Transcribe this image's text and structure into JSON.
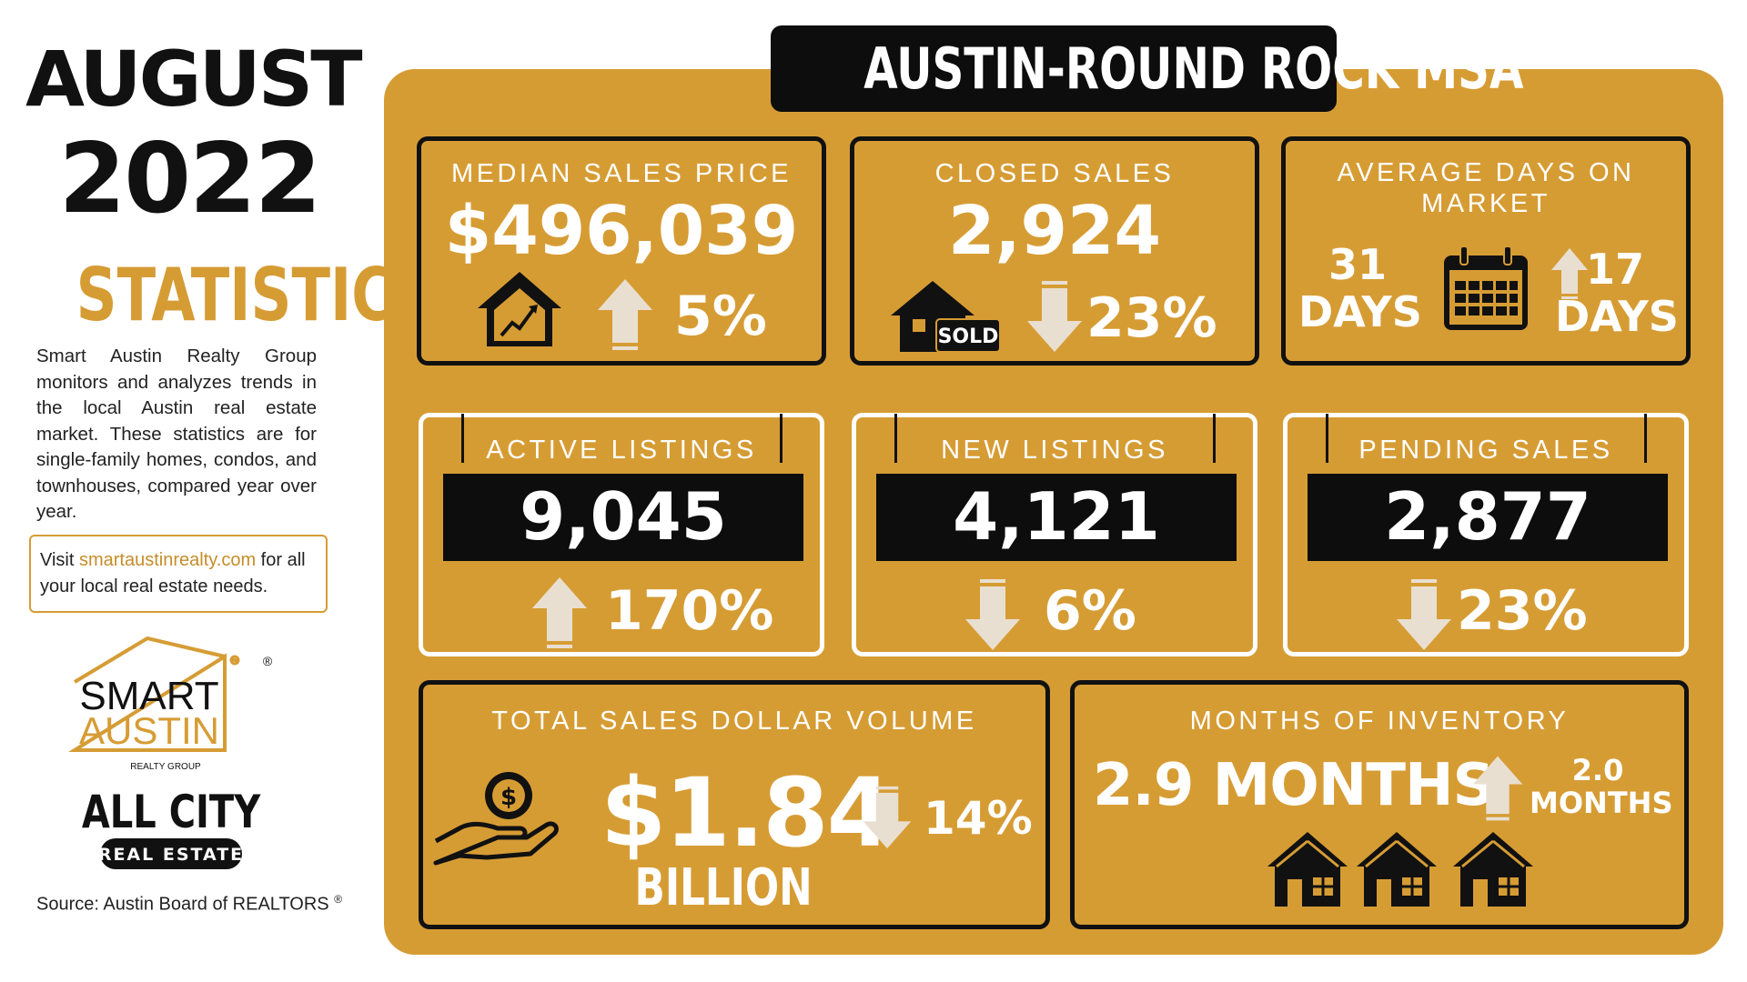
{
  "left": {
    "month": "AUGUST",
    "year": "2022",
    "statistics": "STATISTICS",
    "description": "Smart Austin Realty Group monitors and analyzes trends in the local Austin real estate market. These statistics are for single-family homes, condos, and townhouses, compared year over year.",
    "visit_prefix": "Visit ",
    "visit_link": "smartaustinrealty.com",
    "visit_suffix": " for all your local real estate needs.",
    "smart_logo_line1": "SMART",
    "smart_logo_line2": "AUSTIN",
    "smart_logo_sub": "REALTY GROUP",
    "registered": "®",
    "allcity_line1": "ALL CITY",
    "allcity_line2": "REAL ESTATE",
    "source": "Source: Austin Board of REALTORS",
    "source_mark": "®"
  },
  "banner": "AUSTIN-ROUND ROCK MSA",
  "cards": {
    "median": {
      "label": "MEDIAN SALES PRICE",
      "value": "$496,039",
      "change": "5%",
      "direction": "up"
    },
    "closed": {
      "label": "CLOSED SALES",
      "value": "2,924",
      "change": "23%",
      "direction": "down",
      "sold": "SOLD"
    },
    "dom": {
      "label_line1": "AVERAGE DAYS ON",
      "label_line2": "MARKET",
      "value_num": "31",
      "value_unit": "DAYS",
      "change_num": "17",
      "change_unit": "DAYS",
      "direction": "up"
    },
    "active": {
      "label": "ACTIVE LISTINGS",
      "value": "9,045",
      "change": "170%",
      "direction": "up"
    },
    "new": {
      "label": "NEW LISTINGS",
      "value": "4,121",
      "change": "6%",
      "direction": "down"
    },
    "pending": {
      "label": "PENDING SALES",
      "value": "2,877",
      "change": "23%",
      "direction": "down"
    },
    "volume": {
      "label": "TOTAL SALES DOLLAR VOLUME",
      "value": "$1.84",
      "unit": "BILLION",
      "change": "14%",
      "direction": "down"
    },
    "inventory": {
      "label": "MONTHS OF INVENTORY",
      "value": "2.9 MONTHS",
      "change_line1": "2.0",
      "change_line2": "MONTHS",
      "direction": "up"
    }
  },
  "colors": {
    "gold": "#d69c34",
    "dark": "#0d0d0d",
    "arrow": "#e9dfd1",
    "white": "#ffffff"
  },
  "icons": [
    "house-chart-icon",
    "sold-house-icon",
    "calendar-icon",
    "money-hand-icon",
    "house-icon"
  ]
}
